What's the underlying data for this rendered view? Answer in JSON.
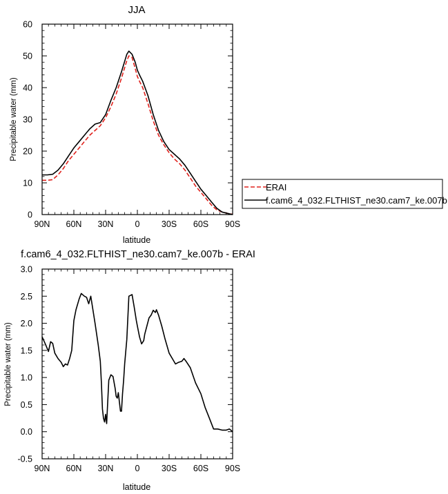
{
  "chart_data": [
    {
      "type": "line",
      "title": "JJA",
      "xlabel": "latitude",
      "ylabel": "Precipitable water (mm)",
      "x_tick_labels": [
        "90N",
        "60N",
        "30N",
        "0",
        "30S",
        "60S",
        "90S"
      ],
      "y_tick_labels": [
        "0",
        "10",
        "20",
        "30",
        "40",
        "50",
        "60"
      ],
      "xlim": [
        90,
        -90
      ],
      "ylim": [
        0,
        60
      ],
      "legend_position": "right",
      "series": [
        {
          "name": "ERAI",
          "color": "#e0201b",
          "dash": "dashed",
          "x": [
            90,
            85,
            80,
            75,
            70,
            65,
            60,
            55,
            50,
            45,
            40,
            35,
            30,
            25,
            20,
            15,
            10,
            8,
            5,
            2,
            0,
            -2,
            -5,
            -10,
            -15,
            -20,
            -25,
            -30,
            -35,
            -40,
            -45,
            -50,
            -55,
            -60,
            -65,
            -70,
            -75,
            -80,
            -85,
            -90
          ],
          "y": [
            10.8,
            10.8,
            11.0,
            12.5,
            14.5,
            17.0,
            19.0,
            21.0,
            23.0,
            25.0,
            26.5,
            28.0,
            30.5,
            34.0,
            38.0,
            43.0,
            48.5,
            50.0,
            49.5,
            46.0,
            43.5,
            42.0,
            40.0,
            35.0,
            29.5,
            25.0,
            22.0,
            19.5,
            17.5,
            16.0,
            14.0,
            11.5,
            9.0,
            7.0,
            5.0,
            3.0,
            1.5,
            0.8,
            0.4,
            0.1
          ]
        },
        {
          "name": "f.cam6_4_032.FLTHIST_ne30.cam7_ke.007b",
          "color": "#000000",
          "dash": "solid",
          "x": [
            90,
            85,
            80,
            75,
            70,
            65,
            60,
            55,
            50,
            45,
            40,
            35,
            30,
            25,
            20,
            15,
            10,
            8,
            5,
            2,
            0,
            -2,
            -5,
            -10,
            -15,
            -20,
            -25,
            -30,
            -35,
            -40,
            -45,
            -50,
            -55,
            -60,
            -65,
            -70,
            -75,
            -80,
            -85,
            -90
          ],
          "y": [
            12.5,
            12.5,
            12.7,
            14.0,
            16.0,
            18.5,
            21.0,
            23.0,
            25.0,
            27.0,
            28.5,
            29.0,
            31.5,
            36.0,
            40.0,
            45.0,
            50.5,
            51.5,
            50.5,
            48.0,
            45.5,
            44.0,
            42.0,
            37.5,
            31.5,
            26.5,
            23.0,
            20.5,
            19.0,
            17.5,
            15.5,
            13.0,
            10.5,
            8.0,
            6.0,
            4.0,
            2.0,
            0.8,
            0.4,
            0.0
          ]
        }
      ]
    },
    {
      "type": "line",
      "title": "f.cam6_4_032.FLTHIST_ne30.cam7_ke.007b - ERAI",
      "xlabel": "latitude",
      "ylabel": "Precipitable water (mm)",
      "x_tick_labels": [
        "90N",
        "60N",
        "30N",
        "0",
        "30S",
        "60S",
        "90S"
      ],
      "y_tick_labels": [
        "-0.5",
        "0.0",
        "0.5",
        "1.0",
        "1.5",
        "2.0",
        "2.5",
        "3.0"
      ],
      "xlim": [
        90,
        -90
      ],
      "ylim": [
        -0.5,
        3.0
      ],
      "series": [
        {
          "color": "#000000",
          "dash": "solid",
          "x": [
            90,
            87,
            84,
            82,
            80,
            78,
            75,
            72,
            70,
            68,
            66,
            64,
            62,
            60,
            58,
            55,
            53,
            50,
            48,
            46,
            44,
            40,
            37,
            35,
            34,
            33,
            32,
            31,
            30,
            29,
            27,
            25,
            23,
            21,
            20,
            19,
            18,
            16,
            15,
            14,
            13,
            12,
            10,
            8,
            5,
            3,
            1,
            0,
            -2,
            -4,
            -6,
            -7,
            -9,
            -11,
            -13,
            -15,
            -17,
            -18,
            -20,
            -23,
            -26,
            -30,
            -33,
            -36,
            -39,
            -42,
            -44,
            -46,
            -50,
            -55,
            -60,
            -64,
            -68,
            -72,
            -76,
            -80,
            -84,
            -87,
            -90
          ],
          "y": [
            1.75,
            1.62,
            1.48,
            1.66,
            1.63,
            1.45,
            1.35,
            1.28,
            1.2,
            1.25,
            1.23,
            1.35,
            1.5,
            2.05,
            2.25,
            2.45,
            2.55,
            2.5,
            2.48,
            2.36,
            2.5,
            2.0,
            1.6,
            1.3,
            0.9,
            0.42,
            0.25,
            0.18,
            0.32,
            0.15,
            0.95,
            1.05,
            1.02,
            0.8,
            0.65,
            0.62,
            0.72,
            0.38,
            0.38,
            0.7,
            0.95,
            1.25,
            1.7,
            2.5,
            2.53,
            2.3,
            2.05,
            1.95,
            1.75,
            1.62,
            1.68,
            1.8,
            1.95,
            2.1,
            2.15,
            2.24,
            2.2,
            2.25,
            2.15,
            1.95,
            1.72,
            1.45,
            1.35,
            1.25,
            1.28,
            1.3,
            1.35,
            1.3,
            1.18,
            0.9,
            0.7,
            0.45,
            0.25,
            0.05,
            0.05,
            0.03,
            0.03,
            0.05,
            0.0
          ]
        }
      ]
    }
  ]
}
